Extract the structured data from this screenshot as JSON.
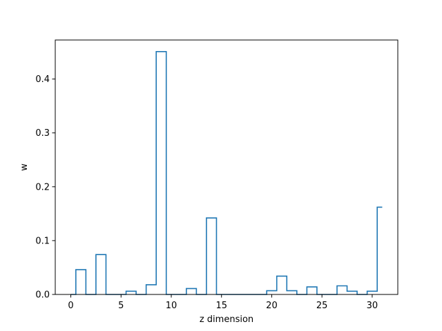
{
  "chart_data": {
    "type": "line",
    "style": "step",
    "title": "",
    "xlabel": "z dimension",
    "ylabel": "w",
    "xlim": [
      -1.55,
      32.55
    ],
    "ylim": [
      0,
      0.4725
    ],
    "xticks": [
      0,
      5,
      10,
      15,
      20,
      25,
      30
    ],
    "yticks": [
      0.0,
      0.1,
      0.2,
      0.3,
      0.4
    ],
    "ytick_labels": [
      "0.0",
      "0.1",
      "0.2",
      "0.3",
      "0.4"
    ],
    "grid": false,
    "series": [
      {
        "color": "#1f77b4",
        "x": [
          0,
          1,
          2,
          3,
          4,
          5,
          6,
          7,
          8,
          9,
          10,
          11,
          12,
          13,
          14,
          15,
          16,
          17,
          18,
          19,
          20,
          21,
          22,
          23,
          24,
          25,
          26,
          27,
          28,
          29,
          30,
          31
        ],
        "y": [
          0.0,
          0.046,
          0.0,
          0.074,
          0.0,
          0.0,
          0.006,
          0.0,
          0.018,
          0.451,
          0.0,
          0.0,
          0.011,
          0.0,
          0.142,
          0.0,
          0.0,
          0.0,
          0.0,
          0.0,
          0.007,
          0.034,
          0.007,
          0.0,
          0.014,
          0.0,
          0.0,
          0.016,
          0.006,
          0.0,
          0.006,
          0.162
        ]
      }
    ]
  }
}
